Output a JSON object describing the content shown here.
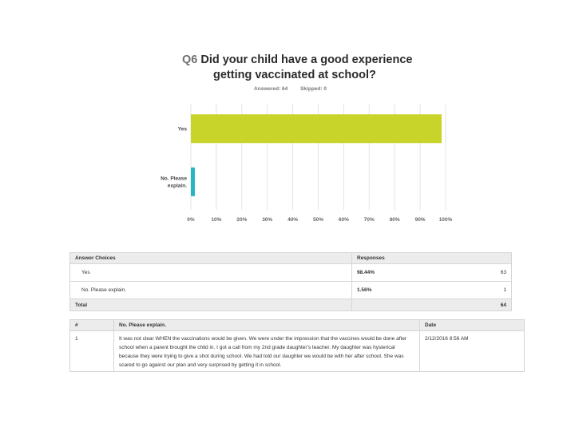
{
  "question": {
    "number": "Q6",
    "title_line1": "Did your child have a good experience",
    "title_line2": "getting vaccinated at school?",
    "answered": "Answered: 64",
    "skipped": "Skipped: 0"
  },
  "chart_data": {
    "type": "bar",
    "orientation": "horizontal",
    "categories": [
      "Yes",
      "No. Please explain."
    ],
    "values": [
      98.44,
      1.56
    ],
    "xlim": [
      0,
      100
    ],
    "ticks": [
      "0%",
      "10%",
      "20%",
      "30%",
      "40%",
      "50%",
      "60%",
      "70%",
      "80%",
      "90%",
      "100%"
    ],
    "grid": true,
    "colors": [
      "#c9d42b",
      "#27b6c4"
    ]
  },
  "summary_table": {
    "headers": [
      "Answer Choices",
      "Responses"
    ],
    "rows": [
      {
        "choice": "Yes",
        "percent": "98.44%",
        "count": "63"
      },
      {
        "choice": "No. Please explain.",
        "percent": "1.56%",
        "count": "1"
      }
    ],
    "total_label": "Total",
    "total_count": "64"
  },
  "comments_table": {
    "headers": [
      "#",
      "No. Please explain.",
      "Date"
    ],
    "rows": [
      {
        "num": "1",
        "text": "It was not clear WHEN the vaccinations would be given. We were under the impression that the vaccines would be done after school when a parent brought the child in. I got a call from my 2nd grade daughter's teacher. My daughter was hysterical because they were trying to give a shot during school. We had told our daughter we would be with her after school. She was scared to go against our plan and very surprised by getting it in school.",
        "date": "2/12/2016 8:56 AM"
      }
    ]
  }
}
